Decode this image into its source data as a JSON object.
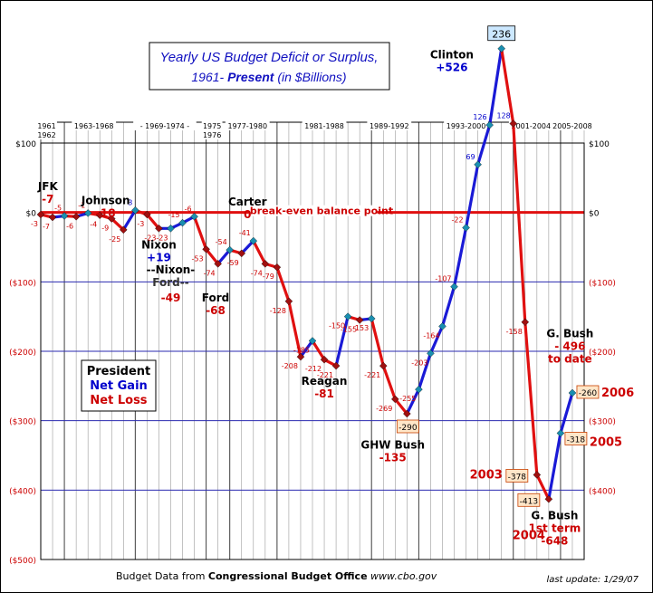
{
  "chart_data": {
    "type": "line",
    "title_line1": "Yearly US Budget Deficit or Surplus,",
    "title_line2_a": "1961- ",
    "title_line2_b": "Present",
    "title_line2_c": "  (in $Billions)",
    "ylim": [
      -500,
      100
    ],
    "y_ticks": [
      {
        "value": 100,
        "left": "$100",
        "right": "$100"
      },
      {
        "value": 0,
        "left": "$0",
        "right": "$0"
      },
      {
        "value": -100,
        "left": "($100)",
        "right": "($100)"
      },
      {
        "value": -200,
        "left": "($200)",
        "right": "($200)"
      },
      {
        "value": -300,
        "left": "($300)",
        "right": "($300)"
      },
      {
        "value": -400,
        "left": "($400)",
        "right": "($400)"
      },
      {
        "value": -500,
        "left": "($500)",
        "right": ""
      }
    ],
    "x_range": [
      1961,
      2007
    ],
    "years": [
      1961,
      1962,
      1963,
      1964,
      1965,
      1966,
      1967,
      1968,
      1969,
      1970,
      1971,
      1972,
      1973,
      1974,
      1975,
      1976,
      1977,
      1978,
      1979,
      1980,
      1981,
      1982,
      1983,
      1984,
      1985,
      1986,
      1987,
      1988,
      1989,
      1990,
      1991,
      1992,
      1993,
      1994,
      1995,
      1996,
      1997,
      1998,
      1999,
      2000,
      2001,
      2002,
      2003,
      2004,
      2005,
      2006
    ],
    "values": [
      -3,
      -7,
      -5,
      -6,
      -1,
      -4,
      -9,
      -25,
      3,
      -3,
      -23,
      -23,
      -15,
      -6,
      -53,
      -74,
      -54,
      -59,
      -41,
      -74,
      -79,
      -128,
      -208,
      -185,
      -212,
      -221,
      -150,
      -155,
      -153,
      -221,
      -269,
      -290,
      -255,
      -203,
      -164,
      -107,
      -22,
      69,
      126,
      236,
      128,
      -158,
      -378,
      -413,
      -318,
      -260
    ],
    "point_labels": [
      "-3",
      "-7",
      "-5",
      "-6",
      "-1",
      "-4",
      "-9",
      "-25",
      "3",
      "-3",
      "-23",
      "-23",
      "-15",
      "-6",
      "-53",
      "-74",
      "-54",
      "-59",
      "-41",
      "-74",
      "-79",
      "-128",
      "-208",
      "-185",
      "-212",
      "-221",
      "-150",
      "-155",
      "-153",
      "-221",
      "-269",
      "-290",
      "-255",
      "-203",
      "-164",
      "-107",
      "-22",
      "69",
      "126",
      "236",
      "128",
      "-158",
      "-378",
      "-413",
      "-318",
      "-260"
    ],
    "term_labels": [
      {
        "text": "1961",
        "row": 0,
        "x": 1961.5
      },
      {
        "text": "1962",
        "row": 1,
        "x": 1961.5
      },
      {
        "text": "1963-1968",
        "row": 0,
        "x": 1965.5
      },
      {
        "text": "- 1969-1974 -",
        "row": 0,
        "x": 1971.5
      },
      {
        "text": "1975",
        "row": 0,
        "x": 1975.5
      },
      {
        "text": "1976",
        "row": 1,
        "x": 1975.5
      },
      {
        "text": "1977-1980",
        "row": 0,
        "x": 1978.5
      },
      {
        "text": "1981-1988",
        "row": 0,
        "x": 1985
      },
      {
        "text": "1989-1992",
        "row": 0,
        "x": 1990.5
      },
      {
        "text": "1993-2000",
        "row": 0,
        "x": 1997
      },
      {
        "text": "2001-2004",
        "row": 0,
        "x": 2002.5
      },
      {
        "text": "2005-2008",
        "row": 0,
        "x": 2006
      }
    ],
    "term_dividers": [
      1961,
      1963,
      1969,
      1975,
      1977,
      1981,
      1989,
      1993,
      2001,
      2005
    ],
    "annotations": [
      {
        "name": "jfk",
        "line1": "JFK",
        "line2": "-7",
        "c2": "#cc0000",
        "x": 1961.6,
        "y": 32
      },
      {
        "name": "johnson",
        "line1": "Johnson",
        "line2": "-18",
        "c2": "#cc0000",
        "x": 1966.5,
        "y": 12
      },
      {
        "name": "nixon",
        "line1": "Nixon",
        "line2": "+19",
        "c2": "#0000cc",
        "x": 1971.0,
        "y": -52
      },
      {
        "name": "nixon-ford",
        "line1": "--Nixon-",
        "line2": "Ford--",
        "c2": "#333333",
        "x": 1972.0,
        "y": -88
      },
      {
        "name": "nixon-ford-total",
        "line1": "-49",
        "line2": "",
        "c2": "#cc0000",
        "x": 1972.0,
        "y": -128,
        "color1": "#cc0000"
      },
      {
        "name": "ford",
        "line1": "Ford",
        "line2": "-68",
        "c2": "#cc0000",
        "x": 1975.8,
        "y": -128
      },
      {
        "name": "carter",
        "line1": "Carter",
        "line2": "0",
        "c2": "#cc0000",
        "x": 1978.5,
        "y": 10
      },
      {
        "name": "reagan",
        "line1": "Reagan",
        "line2": "-81",
        "c2": "#cc0000",
        "x": 1985.0,
        "y": -248
      },
      {
        "name": "ghw-bush",
        "line1": "GHW Bush",
        "line2": "-135",
        "c2": "#cc0000",
        "x": 1990.8,
        "y": -340
      },
      {
        "name": "clinton",
        "line1": "Clinton",
        "line2": "+526",
        "c2": "#0000cc",
        "x": 1995.8,
        "y": 222
      },
      {
        "name": "g-bush-1st",
        "line1": "G. Bush",
        "line2": "1st term",
        "c2": "#cc0000",
        "x": 2004.5,
        "y": -442,
        "line3": "-648"
      },
      {
        "name": "g-bush-to-date",
        "line1": "G. Bush",
        "line2": "- 496",
        "c2": "#cc0000",
        "x": 2005.8,
        "y": -180,
        "line3": "to date"
      }
    ],
    "breakeven_label": "break-even balance point",
    "legend": {
      "title": "President",
      "gain": "Net Gain",
      "loss": "Net Loss"
    },
    "callouts": [
      {
        "name": "2003",
        "text": "2003"
      },
      {
        "name": "2004",
        "text": "2004"
      },
      {
        "name": "2005",
        "text": "2005"
      },
      {
        "name": "2006",
        "text": "2006"
      }
    ],
    "source_prefix": "Budget Data from ",
    "source_org": "Congressional Budget Office",
    "source_url": "  www.cbo.gov",
    "last_update": "last update: 1/29/07",
    "colors": {
      "gain": "#1a1ad6",
      "loss": "#e01010",
      "marker": "#a01010",
      "grid": "#2a2ab0",
      "zero": "#e01010",
      "title": "#1010c0"
    }
  }
}
